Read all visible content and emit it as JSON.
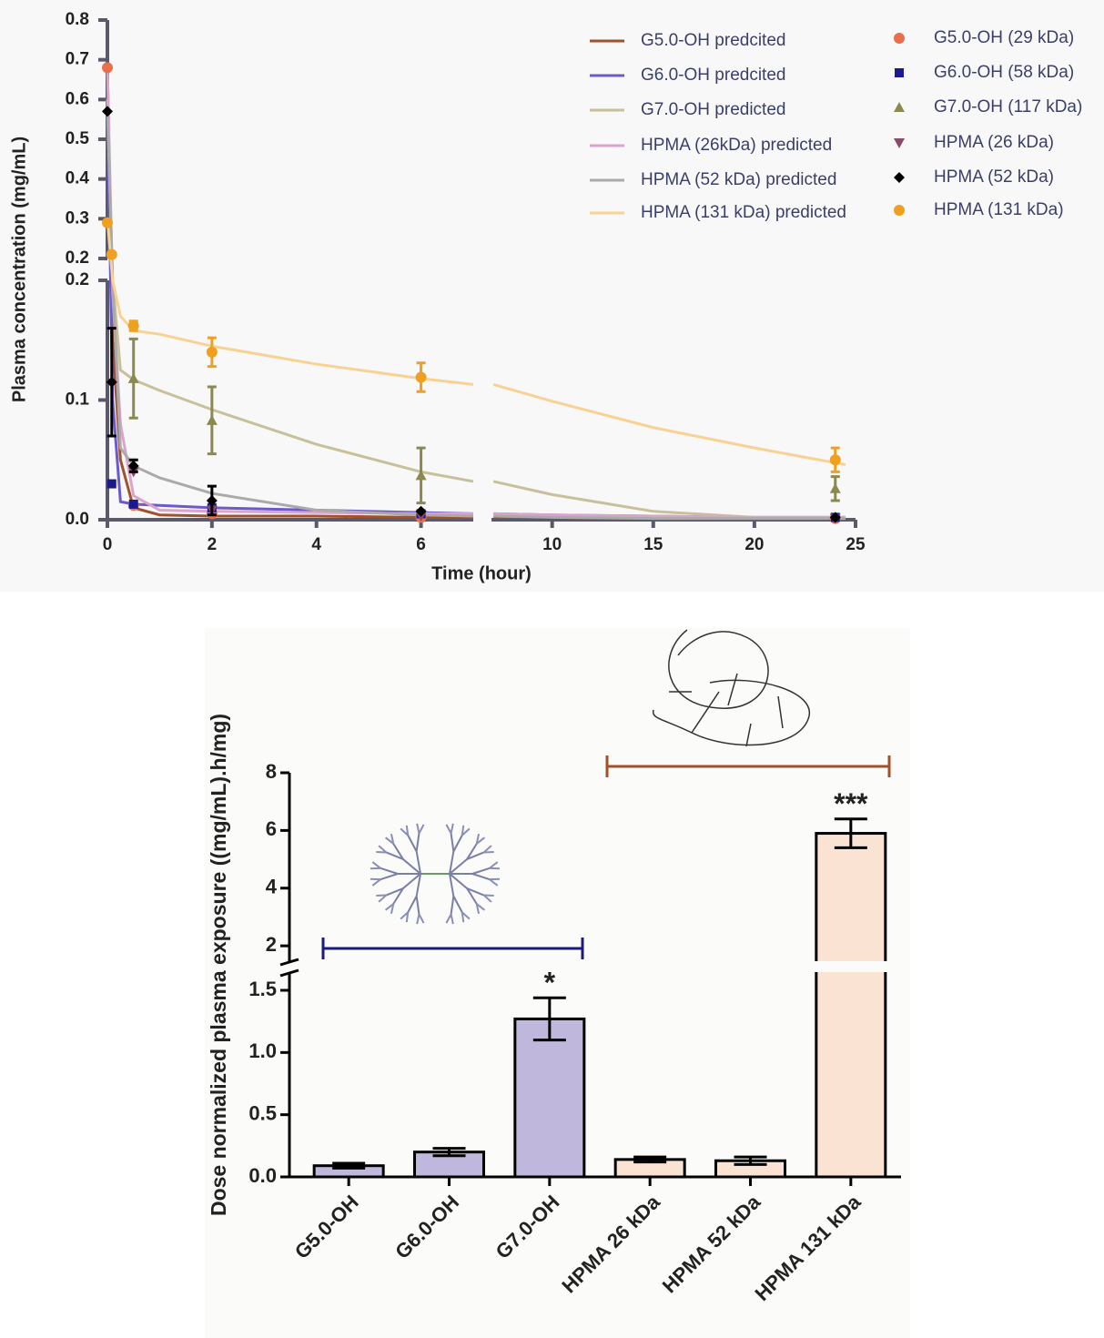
{
  "chart_data": [
    {
      "type": "line",
      "x_label": "Time (hour)",
      "y_label": "Plasma concentration  (mg/mL)",
      "legend": "upper right",
      "x_segments": [
        {
          "xlim": [
            0,
            7
          ],
          "xticks": [
            0,
            2,
            4,
            6
          ]
        },
        {
          "xlim": [
            7,
            25
          ],
          "xticks": [
            10,
            15,
            20,
            25
          ]
        }
      ],
      "y_segments": [
        {
          "ylim": [
            0,
            0.2
          ],
          "yticks": [
            {
              "value": 0,
              "label": "0.0"
            },
            0.1,
            0.2
          ]
        },
        {
          "ylim": [
            0.2,
            0.8
          ],
          "yticks": [
            0.2,
            0.3,
            0.4,
            0.5,
            0.6,
            0.7,
            0.8
          ]
        }
      ],
      "x": [
        0,
        0.1,
        0.25,
        0.5,
        1,
        2,
        4,
        6,
        7,
        7.1,
        10,
        15,
        20,
        24.5
      ],
      "series": [
        {
          "name": "G5.0-OH predcited",
          "color": "#a0522d",
          "values": [
            0.69,
            0.15,
            0.05,
            0.01,
            0.004,
            0.003,
            0.003,
            0.002,
            0.002,
            0.002,
            0.002,
            0.001,
            0.001,
            0.001
          ]
        },
        {
          "name": "G6.0-OH predcited",
          "color": "#6a5acd",
          "values": [
            0.6,
            0.1,
            0.015,
            0.013,
            0.012,
            0.01,
            0.008,
            0.006,
            0.005,
            0.005,
            0.004,
            0.003,
            0.002,
            0.002
          ]
        },
        {
          "name": "G7.0-OH predicted",
          "color": "#c8c09a",
          "values": [
            0.6,
            0.2,
            0.125,
            0.117,
            0.108,
            0.092,
            0.063,
            0.04,
            0.032,
            0.032,
            0.021,
            0.007,
            0.002,
            0.001
          ]
        },
        {
          "name": "HPMA (26kDa) predicted",
          "color": "#dca4cc",
          "values": [
            0.69,
            0.19,
            0.08,
            0.02,
            0.008,
            0.007,
            0.006,
            0.005,
            0.005,
            0.005,
            0.004,
            0.003,
            0.002,
            0.002
          ]
        },
        {
          "name": "HPMA (52 kDa) predicted",
          "color": "#aaaaaa",
          "values": [
            0.58,
            0.2,
            0.06,
            0.045,
            0.035,
            0.022,
            0.008,
            0.004,
            0.003,
            0.003,
            0.002,
            0.001,
            0.001,
            0.001
          ]
        },
        {
          "name": "HPMA (131 kDa) predicted",
          "color": "#f8d292",
          "values": [
            0.3,
            0.2,
            0.17,
            0.158,
            0.155,
            0.145,
            0.13,
            0.118,
            0.113,
            0.113,
            0.099,
            0.077,
            0.06,
            0.046
          ]
        }
      ],
      "observed": {
        "x": [
          0,
          0.083,
          0.5,
          2,
          6,
          24
        ],
        "series": [
          {
            "name": "G5.0-OH (29 kDa)",
            "color": "#e8704a",
            "marker": "circle",
            "values": [
              0.68,
              null,
              0.012,
              0.005,
              0.002,
              0.001
            ]
          },
          {
            "name": "G6.0-OH (58 kDa)",
            "color": "#1a1a8a",
            "marker": "square",
            "values": [
              null,
              0.03,
              0.013,
              0.01,
              0.005,
              0.002
            ]
          },
          {
            "name": "G7.0-OH (117 kDa)",
            "color": "#8a8a50",
            "marker": "triangle",
            "values": [
              null,
              null,
              0.118,
              0.083,
              0.037,
              0.026
            ],
            "errors": [
              null,
              null,
              0.033,
              0.028,
              0.023,
              0.01
            ]
          },
          {
            "name": "HPMA (26 kDa)",
            "color": "#8a4a6a",
            "marker": "triangle-down",
            "values": [
              null,
              null,
              0.04,
              0.008,
              0.003,
              0.001
            ]
          },
          {
            "name": "HPMA (52 kDa)",
            "color": "#000000",
            "marker": "diamond",
            "values": [
              0.57,
              0.115,
              0.045,
              0.016,
              0.007,
              0.002
            ],
            "errors": [
              null,
              0.045,
              0.005,
              0.012,
              null,
              null
            ]
          },
          {
            "name": "HPMA (131 kDa)",
            "color": "#f0a020",
            "marker": "circle",
            "values": [
              0.29,
              0.21,
              0.162,
              0.14,
              0.119,
              0.05
            ],
            "errors": [
              null,
              null,
              0.004,
              0.012,
              0.012,
              0.01
            ]
          }
        ]
      }
    },
    {
      "type": "bar",
      "y_label": "Dose normalized plasma exposure ((mg/mL).h/mg)",
      "categories": [
        "G5.0-OH",
        "G6.0-OH",
        "G7.0-OH",
        "HPMA 26 kDa",
        "HPMA 52 kDa",
        "HPMA 131 kDa"
      ],
      "values": [
        0.09,
        0.2,
        1.27,
        0.14,
        0.13,
        5.9
      ],
      "errors": [
        0.02,
        0.03,
        0.17,
        0.02,
        0.03,
        0.5
      ],
      "colors": [
        "#c0b8dc",
        "#c0b8dc",
        "#c0b8dc",
        "#fae3d2",
        "#fae3d2",
        "#fae3d2"
      ],
      "annotations": [
        null,
        null,
        "*",
        null,
        null,
        "***"
      ],
      "y_segments": [
        {
          "ylim": [
            0,
            1.5
          ],
          "yticks": [
            {
              "value": 0,
              "label": "0.0"
            },
            0.5,
            {
              "value": 1,
              "label": "1.0"
            },
            1.5
          ]
        },
        {
          "ylim": [
            1.5,
            8
          ],
          "yticks": [
            2,
            4,
            6,
            8
          ]
        }
      ]
    }
  ]
}
